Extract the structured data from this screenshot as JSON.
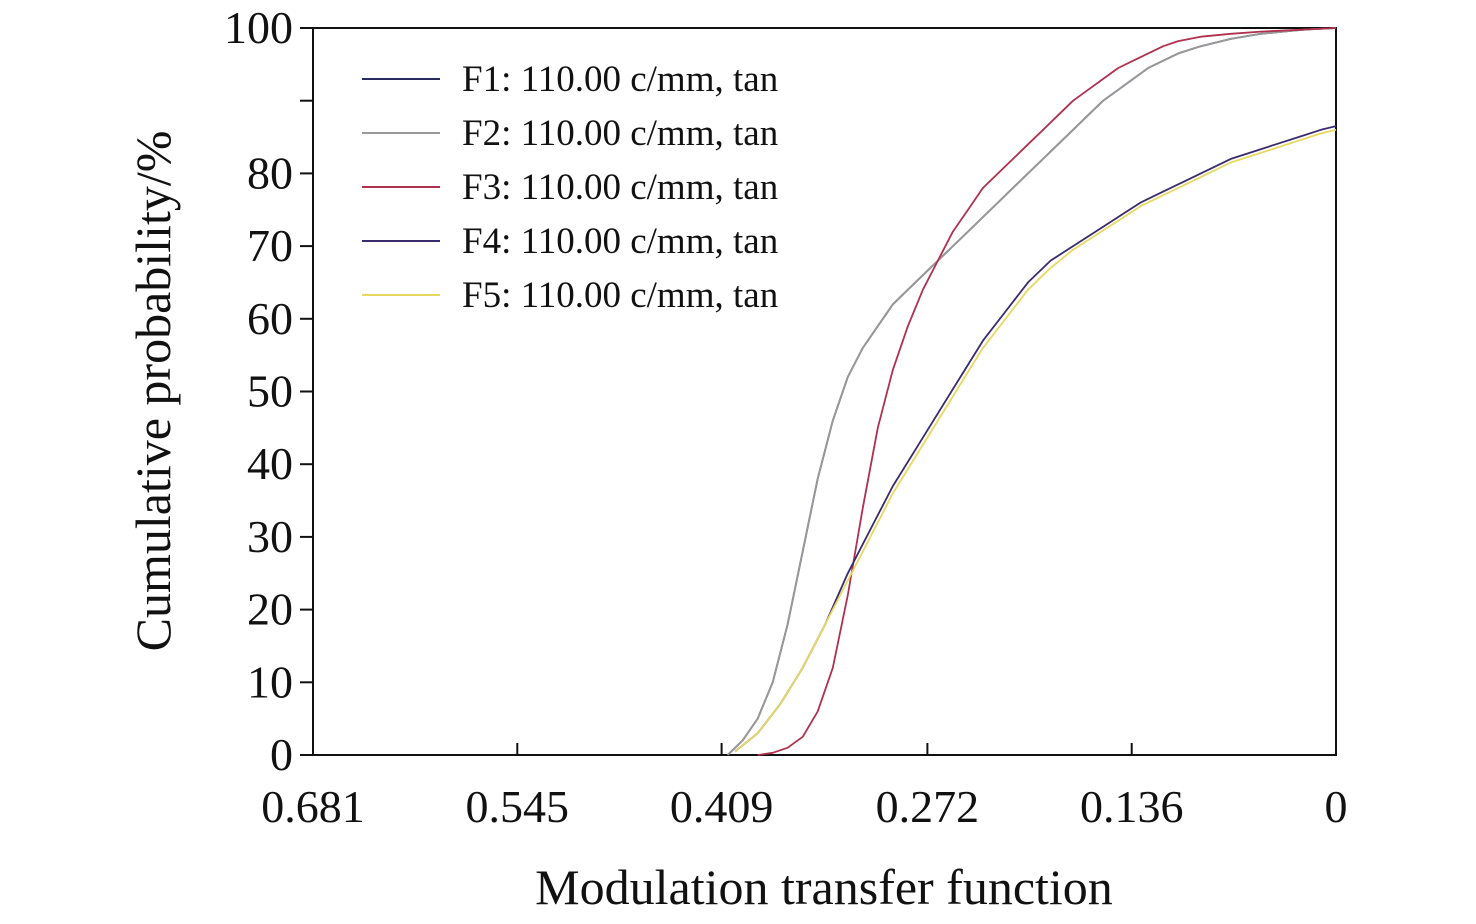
{
  "chart_data": {
    "type": "line",
    "title": "",
    "xlabel": "Modulation transfer function",
    "ylabel": "Cumulative probability/%",
    "x_reversed": true,
    "xlim": [
      0.681,
      0
    ],
    "ylim": [
      0,
      100
    ],
    "x_ticks": [
      0.681,
      0.545,
      0.409,
      0.272,
      0.136,
      0
    ],
    "x_tick_labels": [
      "0.681",
      "0.545",
      "0.409",
      "0.272",
      "0.136",
      "0"
    ],
    "y_ticks": [
      0,
      10,
      20,
      30,
      40,
      50,
      60,
      70,
      80,
      90,
      100
    ],
    "y_tick_labels": [
      "0",
      "10",
      "20",
      "30",
      "40",
      "50",
      "60",
      "70",
      "80",
      "",
      "100"
    ],
    "grid": false,
    "legend_position": "top-left",
    "series": [
      {
        "name": "F1: 110.00 c/mm, tan",
        "color": "#2a2a5e",
        "x": [
          0.405,
          0.395,
          0.385,
          0.375,
          0.365,
          0.355,
          0.345,
          0.335,
          0.325,
          0.315,
          0.305,
          0.295,
          0.285,
          0.275,
          0.265,
          0.255,
          0.245,
          0.235,
          0.225,
          0.215,
          0.205,
          0.195,
          0.185,
          0.175,
          0.165,
          0.155,
          0.145,
          0.135,
          0.125,
          0.115,
          0.105,
          0.09,
          0.07,
          0.05,
          0.03,
          0.02,
          0.0
        ],
        "y": [
          0,
          2,
          5,
          10,
          18,
          28,
          38,
          46,
          52,
          56,
          59,
          62,
          64,
          66,
          68,
          70,
          72,
          74,
          76,
          78,
          80,
          82,
          84,
          86,
          88,
          90,
          91.5,
          93,
          94.5,
          95.5,
          96.5,
          97.5,
          98.5,
          99.2,
          99.6,
          99.8,
          100
        ]
      },
      {
        "name": "F2: 110.00 c/mm, tan",
        "color": "#999999",
        "x": [
          0.405,
          0.395,
          0.385,
          0.375,
          0.365,
          0.355,
          0.345,
          0.335,
          0.325,
          0.315,
          0.305,
          0.295,
          0.285,
          0.275,
          0.265,
          0.255,
          0.245,
          0.235,
          0.225,
          0.215,
          0.205,
          0.195,
          0.185,
          0.175,
          0.165,
          0.155,
          0.145,
          0.135,
          0.125,
          0.115,
          0.105,
          0.09,
          0.07,
          0.05,
          0.03,
          0.02,
          0.0
        ],
        "y": [
          0,
          2,
          5,
          10,
          18,
          28,
          38,
          46,
          52,
          56,
          59,
          62,
          64,
          66,
          68,
          70,
          72,
          74,
          76,
          78,
          80,
          82,
          84,
          86,
          88,
          90,
          91.5,
          93,
          94.5,
          95.5,
          96.5,
          97.5,
          98.5,
          99.2,
          99.6,
          99.8,
          100
        ]
      },
      {
        "name": "F3: 110.00 c/mm, tan",
        "color": "#b03050",
        "x": [
          0.385,
          0.375,
          0.365,
          0.355,
          0.345,
          0.335,
          0.325,
          0.315,
          0.305,
          0.295,
          0.285,
          0.275,
          0.265,
          0.255,
          0.245,
          0.235,
          0.225,
          0.215,
          0.205,
          0.195,
          0.185,
          0.175,
          0.165,
          0.155,
          0.145,
          0.135,
          0.125,
          0.115,
          0.105,
          0.09,
          0.07,
          0.05,
          0.03,
          0.02,
          0.0
        ],
        "y": [
          0,
          0.3,
          1,
          2.5,
          6,
          12,
          22,
          34,
          45,
          53,
          59,
          64,
          68,
          72,
          75,
          78,
          80,
          82,
          84,
          86,
          88,
          90,
          91.5,
          93,
          94.5,
          95.5,
          96.5,
          97.5,
          98.2,
          98.8,
          99.2,
          99.5,
          99.7,
          99.8,
          100
        ]
      },
      {
        "name": "F4: 110.00 c/mm, tan",
        "color": "#3a2a6e",
        "x": [
          0.4,
          0.385,
          0.37,
          0.355,
          0.34,
          0.325,
          0.31,
          0.295,
          0.28,
          0.265,
          0.25,
          0.235,
          0.22,
          0.205,
          0.19,
          0.175,
          0.16,
          0.145,
          0.13,
          0.115,
          0.1,
          0.085,
          0.07,
          0.055,
          0.04,
          0.025,
          0.01,
          0.0
        ],
        "y": [
          0.5,
          3,
          7,
          12,
          18,
          25,
          31,
          37,
          42,
          47,
          52,
          57,
          61,
          65,
          68,
          70,
          72,
          74,
          76,
          77.5,
          79,
          80.5,
          82,
          83,
          84,
          85,
          86,
          86.5
        ]
      },
      {
        "name": "F5: 110.00 c/mm, tan",
        "color": "#e8d860",
        "x": [
          0.4,
          0.385,
          0.37,
          0.355,
          0.34,
          0.325,
          0.31,
          0.295,
          0.28,
          0.265,
          0.25,
          0.235,
          0.22,
          0.205,
          0.19,
          0.175,
          0.16,
          0.145,
          0.13,
          0.115,
          0.1,
          0.085,
          0.07,
          0.055,
          0.04,
          0.025,
          0.01,
          0.0
        ],
        "y": [
          0.5,
          3,
          7,
          12,
          18,
          24,
          30,
          36,
          41,
          46,
          51,
          56,
          60,
          64,
          67,
          69.5,
          71.5,
          73.5,
          75.5,
          77,
          78.5,
          80,
          81.5,
          82.5,
          83.5,
          84.5,
          85.5,
          86
        ]
      }
    ]
  }
}
